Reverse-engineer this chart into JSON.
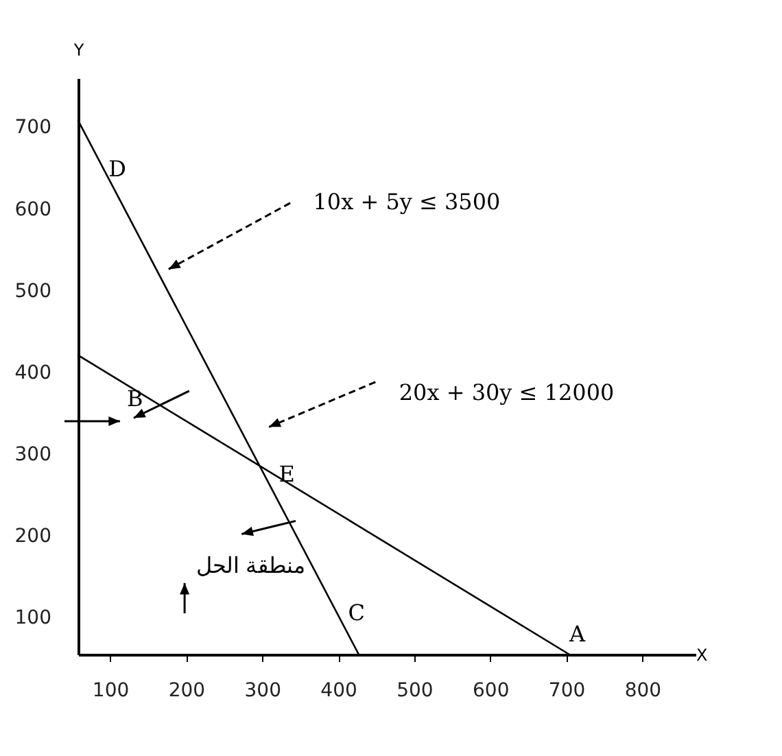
{
  "chart_data": {
    "type": "line",
    "xlabel": "X",
    "ylabel": "Y",
    "xlim": [
      58,
      870
    ],
    "ylim": [
      55,
      760
    ],
    "xticks": [
      100,
      200,
      300,
      400,
      500,
      600,
      700,
      800
    ],
    "yticks": [
      100,
      200,
      300,
      400,
      500,
      600,
      700
    ],
    "grid": false,
    "legend": false,
    "marker": "none",
    "line_style": "solid",
    "series": [
      {
        "color": "#000000",
        "x": [
          58,
          427
        ],
        "values": [
          708,
          55
        ]
      },
      {
        "color": "#000000",
        "x": [
          58,
          704
        ],
        "values": [
          421,
          55
        ]
      }
    ],
    "annotations": [
      "D",
      "B",
      "E",
      "C",
      "A",
      "10x + 5y ≤ 3500",
      "20x + 30y ≤ 12000",
      "منطقة الحل"
    ]
  }
}
